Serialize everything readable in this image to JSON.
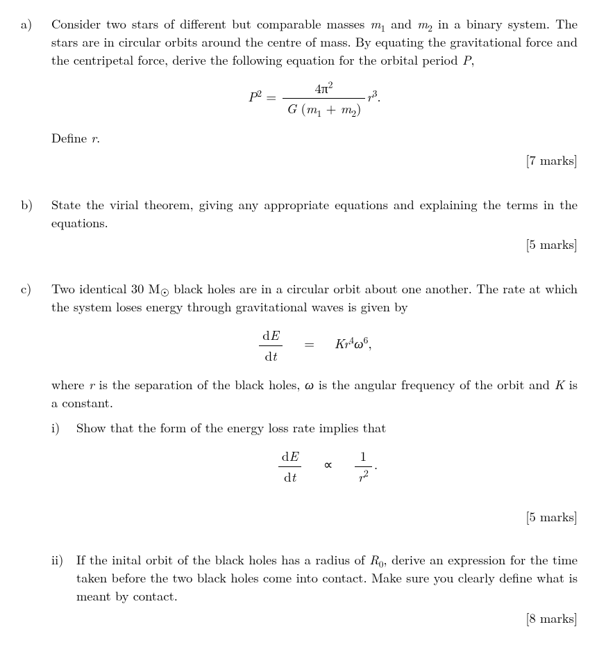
{
  "parts": {
    "a": {
      "label": "a)",
      "text1": "Consider two stars of different but comparable masses ",
      "m1": "m",
      "m1sub": "1",
      "text2": " and ",
      "m2": "m",
      "m2sub": "2",
      "text3": " in a binary system. The stars are in circular orbits around the centre of mass. By equating the gravitational force and the centripetal force, derive the following equation for the orbital period ",
      "P": "P",
      "text4": ",",
      "eq_lhs_P": "P",
      "eq_lhs_2": "2",
      "eq_eq": " = ",
      "eq_num_4pi": "4π",
      "eq_num_2": "2",
      "eq_den_G": "G",
      "eq_den_open": " (",
      "eq_den_m1": "m",
      "eq_den_m1sub": "1",
      "eq_den_plus": " + ",
      "eq_den_m2": "m",
      "eq_den_m2sub": "2",
      "eq_den_close": ")",
      "eq_r": "r",
      "eq_r3": "3",
      "eq_dot": ".",
      "define_pre": "Define ",
      "define_r": "r",
      "define_post": ".",
      "marks": "[7 marks]"
    },
    "b": {
      "label": "b)",
      "text": "State the virial theorem, giving any appropriate equations and explaining the terms in the equations.",
      "marks": "[5 marks]"
    },
    "c": {
      "label": "c)",
      "text_pre": "Two identical 30 M",
      "sun": "☉",
      "text_post": " black holes are in a circular orbit about one another. The rate at which the system loses energy through gravitational waves is given by",
      "eq1_dE": "dE",
      "eq1_dt": "dt",
      "eq1_eq": "=",
      "eq1_K": "K",
      "eq1_r": "r",
      "eq1_r4": "4",
      "eq1_w": "ω",
      "eq1_w6": "6",
      "eq1_comma": ",",
      "where1": "where ",
      "where_r": "r",
      "where2": " is the separation of the black holes, ",
      "where_w": "ω",
      "where3": " is the angular frequency of the orbit and ",
      "where_K": "K",
      "where4": " is a constant.",
      "i": {
        "label": "i)",
        "text": "Show that the form of the energy loss rate implies that",
        "eq_dE": "dE",
        "eq_dt": "dt",
        "eq_prop": "∝",
        "eq_num1": "1",
        "eq_den_r": "r",
        "eq_den_2": "2",
        "eq_dot": ".",
        "marks": "[5 marks]"
      },
      "ii": {
        "label": "ii)",
        "text1": "If the inital orbit of the black holes has a radius of ",
        "R0": "R",
        "R0sub": "0",
        "text2": ", derive an expression for the time taken before the two black holes come into contact. Make sure you clearly define what is meant by contact.",
        "marks": "[8 marks]"
      }
    }
  },
  "style": {
    "text_color": "#000000",
    "background_color": "#ffffff",
    "font_family": "Computer Modern / serif",
    "base_fontsize_pt": 13
  }
}
